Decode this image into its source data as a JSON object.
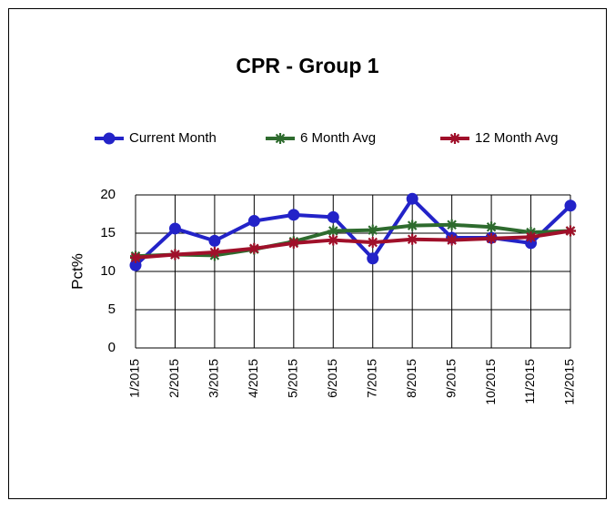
{
  "chart_data": {
    "type": "line",
    "title": "CPR - Group 1",
    "y_label": "Pct%",
    "categories": [
      "1/2015",
      "2/2015",
      "3/2015",
      "4/2015",
      "5/2015",
      "6/2015",
      "7/2015",
      "8/2015",
      "9/2015",
      "10/2015",
      "11/2015",
      "12/2015"
    ],
    "series": [
      {
        "name": "Current Month",
        "color": "#2323c8",
        "marker": "circle",
        "values": [
          10.8,
          15.6,
          14.0,
          16.6,
          17.4,
          17.1,
          11.7,
          19.5,
          14.4,
          14.4,
          13.7,
          18.6
        ]
      },
      {
        "name": "6 Month Avg",
        "color": "#2e6b2e",
        "marker": "star",
        "values": [
          12.0,
          12.2,
          12.1,
          12.9,
          13.9,
          15.3,
          15.4,
          16.0,
          16.1,
          15.8,
          15.1,
          15.3
        ]
      },
      {
        "name": "12 Month Avg",
        "color": "#a0102a",
        "marker": "star",
        "values": [
          11.8,
          12.2,
          12.5,
          13.0,
          13.7,
          14.1,
          13.8,
          14.2,
          14.1,
          14.3,
          14.5,
          15.3
        ]
      }
    ],
    "ylim": [
      0,
      20
    ],
    "yticks": [
      0,
      5,
      10,
      15,
      20
    ],
    "grid": true
  }
}
